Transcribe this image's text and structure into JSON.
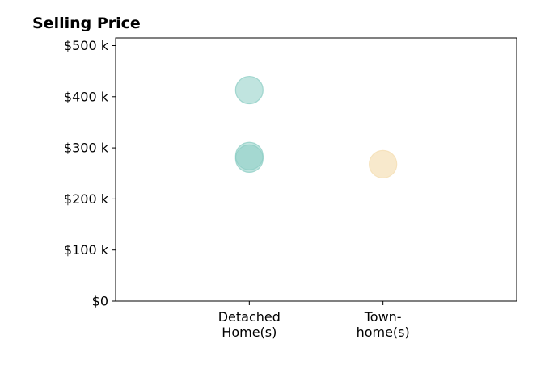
{
  "chart_data": {
    "type": "scatter",
    "title": "Selling Price",
    "xlabel": "",
    "ylabel": "",
    "categories": [
      [
        "Detached",
        "Home(s)"
      ],
      [
        "Town-",
        "home(s)"
      ]
    ],
    "yticks": [
      0,
      100000,
      200000,
      300000,
      400000,
      500000
    ],
    "ytick_labels": [
      "$0",
      "$100 k",
      "$200 k",
      "$300 k",
      "$400 k",
      "$500 k"
    ],
    "ylim": [
      0,
      515000
    ],
    "xlim": [
      0,
      3
    ],
    "grid": false,
    "legend": "none",
    "series": [
      {
        "color": "#8ccdc4",
        "opacity": 0.55,
        "points": [
          {
            "category": 0,
            "y": 413000
          },
          {
            "category": 0,
            "y": 284000
          },
          {
            "category": 0,
            "y": 279000
          }
        ]
      },
      {
        "color": "#f5e2bb",
        "opacity": 0.75,
        "points": [
          {
            "category": 1,
            "y": 268000
          }
        ]
      }
    ]
  }
}
